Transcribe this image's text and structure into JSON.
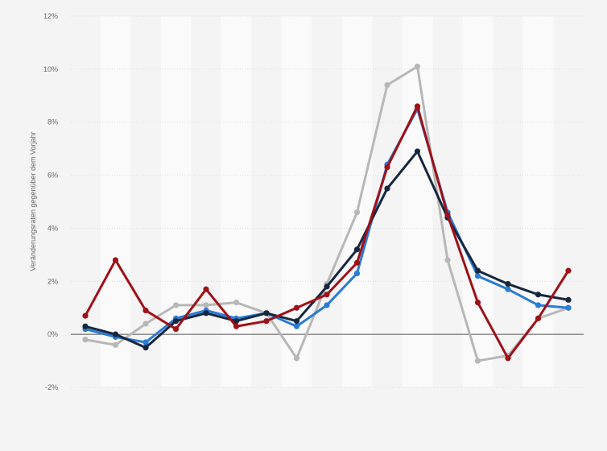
{
  "chart_data": {
    "type": "line",
    "ylabel": "Veränderungsraten gegenüber dem Vorjahr",
    "xlabel": "",
    "ylim": [
      -2,
      12
    ],
    "yticks": [
      {
        "value": 12,
        "label": "12%"
      },
      {
        "value": 10,
        "label": "10%"
      },
      {
        "value": 8,
        "label": "8%"
      },
      {
        "value": 6,
        "label": "6%"
      },
      {
        "value": 4,
        "label": "4%"
      },
      {
        "value": 2,
        "label": "2%"
      },
      {
        "value": 0,
        "label": "0%"
      },
      {
        "value": -2,
        "label": "-2%"
      }
    ],
    "x_count": 17,
    "x": [
      1,
      2,
      3,
      4,
      5,
      6,
      7,
      8,
      9,
      10,
      11,
      12,
      13,
      14,
      15,
      16,
      17
    ],
    "grid": true,
    "legend": "none",
    "series": [
      {
        "color": "#b7b7b7",
        "values": [
          -0.2,
          -0.4,
          0.4,
          1.1,
          1.1,
          1.2,
          0.8,
          -0.9,
          1.9,
          4.6,
          9.4,
          10.1,
          2.8,
          -1.0,
          -0.8,
          0.6,
          1.0
        ]
      },
      {
        "color": "#2a7ad6",
        "values": [
          0.2,
          -0.1,
          -0.3,
          0.6,
          0.9,
          0.6,
          0.8,
          0.3,
          1.1,
          2.3,
          6.4,
          8.5,
          4.6,
          2.2,
          1.7,
          1.1,
          1.0
        ]
      },
      {
        "color": "#15273f",
        "values": [
          0.3,
          0.0,
          -0.5,
          0.5,
          0.8,
          0.5,
          0.8,
          0.5,
          1.8,
          3.2,
          5.5,
          6.9,
          4.4,
          2.4,
          1.9,
          1.5,
          1.3
        ]
      },
      {
        "color": "#a01018",
        "values": [
          0.7,
          2.8,
          0.9,
          0.2,
          1.7,
          0.3,
          0.5,
          1.0,
          1.5,
          2.7,
          6.3,
          8.6,
          4.5,
          1.2,
          -0.9,
          0.6,
          2.4
        ]
      }
    ]
  },
  "colors": {
    "background": "#f4f4f4",
    "band": "#fafafa",
    "gridline": "#dcdcdc",
    "zero_line": "#555555"
  }
}
